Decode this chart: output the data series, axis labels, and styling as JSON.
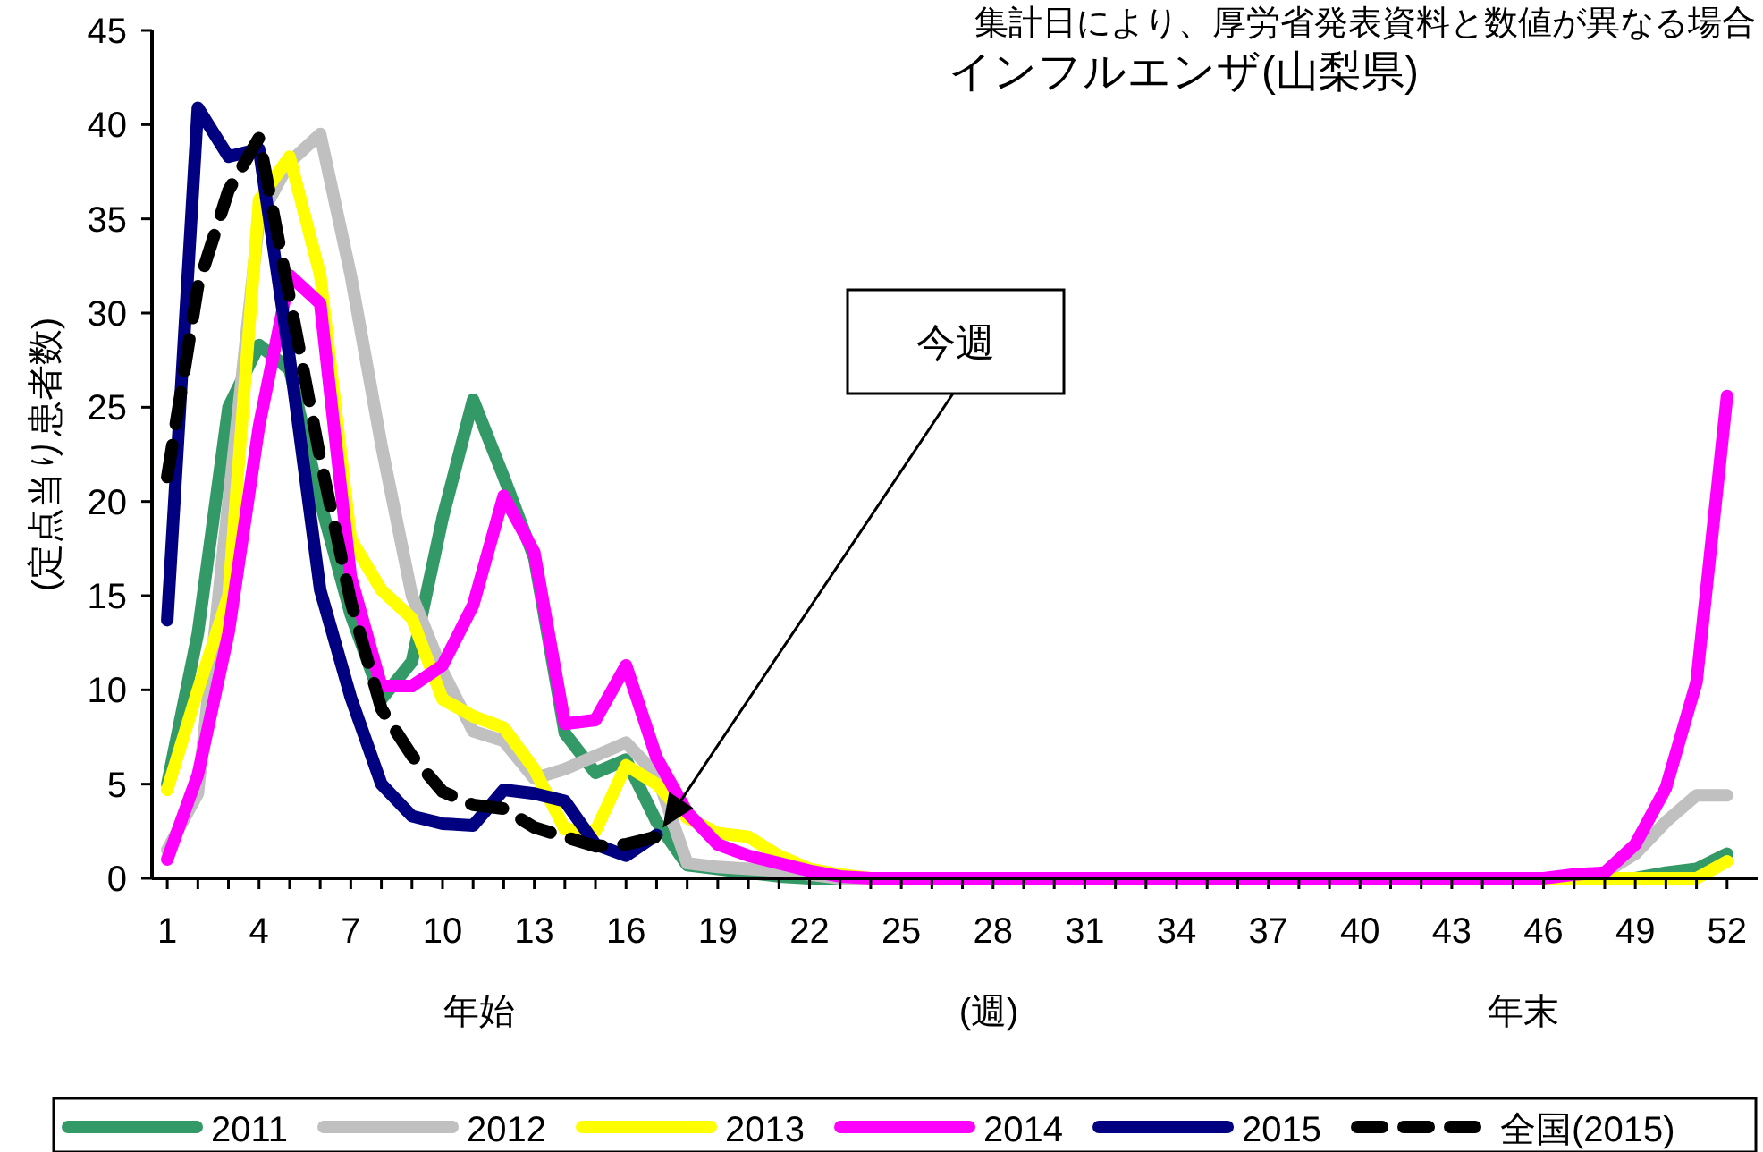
{
  "chart_data": {
    "type": "line",
    "title": "インフルエンザ(山梨県)",
    "xlabel": "(週)",
    "ylabel": "(定点当り患者数)",
    "x": [
      1,
      2,
      3,
      4,
      5,
      6,
      7,
      8,
      9,
      10,
      11,
      12,
      13,
      14,
      15,
      16,
      17,
      18,
      19,
      20,
      21,
      22,
      23,
      24,
      25,
      26,
      27,
      28,
      29,
      30,
      31,
      32,
      33,
      34,
      35,
      36,
      37,
      38,
      39,
      40,
      41,
      42,
      43,
      44,
      45,
      46,
      47,
      48,
      49,
      50,
      51,
      52
    ],
    "xlim": [
      0.5,
      53
    ],
    "xticks": [
      1,
      {
        "value": 2,
        "label": null
      },
      {
        "value": 3,
        "label": null
      },
      4,
      {
        "value": 5,
        "label": null
      },
      {
        "value": 6,
        "label": null
      },
      7,
      {
        "value": 8,
        "label": null
      },
      {
        "value": 9,
        "label": null
      },
      10,
      {
        "value": 11,
        "label": null
      },
      {
        "value": 12,
        "label": null
      },
      13,
      {
        "value": 14,
        "label": null
      },
      {
        "value": 15,
        "label": null
      },
      16,
      {
        "value": 17,
        "label": null
      },
      {
        "value": 18,
        "label": null
      },
      19,
      {
        "value": 20,
        "label": null
      },
      {
        "value": 21,
        "label": null
      },
      22,
      {
        "value": 23,
        "label": null
      },
      {
        "value": 24,
        "label": null
      },
      25,
      {
        "value": 26,
        "label": null
      },
      {
        "value": 27,
        "label": null
      },
      28,
      {
        "value": 29,
        "label": null
      },
      {
        "value": 30,
        "label": null
      },
      31,
      {
        "value": 32,
        "label": null
      },
      {
        "value": 33,
        "label": null
      },
      34,
      {
        "value": 35,
        "label": null
      },
      {
        "value": 36,
        "label": null
      },
      37,
      {
        "value": 38,
        "label": null
      },
      {
        "value": 39,
        "label": null
      },
      40,
      {
        "value": 41,
        "label": null
      },
      {
        "value": 42,
        "label": null
      },
      43,
      {
        "value": 44,
        "label": null
      },
      {
        "value": 45,
        "label": null
      },
      46,
      {
        "value": 47,
        "label": null
      },
      {
        "value": 48,
        "label": null
      },
      49,
      {
        "value": 50,
        "label": null
      },
      {
        "value": 51,
        "label": null
      },
      52
    ],
    "ylim": [
      0,
      45
    ],
    "yticks": [
      0,
      5,
      10,
      15,
      20,
      25,
      30,
      35,
      40,
      45
    ],
    "grid": false,
    "legend": "bottom",
    "marker": "none",
    "series": [
      {
        "name": "2011",
        "color": "#339966",
        "values": [
          5,
          13,
          25,
          28.3,
          27,
          20,
          14,
          9.5,
          11.5,
          19.1,
          25.4,
          21.3,
          17,
          7.7,
          5.6,
          6.3,
          3,
          0.7,
          0.5,
          0.3,
          0.1,
          0,
          0,
          0,
          0,
          0,
          0,
          0,
          0,
          0,
          0,
          0,
          0,
          0,
          0,
          0,
          0,
          0,
          0,
          0,
          0,
          0,
          0,
          0,
          0,
          0,
          0,
          0,
          0,
          0.3,
          0.5,
          1.3
        ]
      },
      {
        "name": "2012",
        "color": "#c0c0c0",
        "values": [
          1.5,
          4.5,
          20,
          35,
          38,
          39.5,
          32,
          23,
          15,
          11,
          7.8,
          7.3,
          5.3,
          5.8,
          6.5,
          7.2,
          5.5,
          0.8,
          0.6,
          0.5,
          0.4,
          0.2,
          0,
          0,
          0,
          0,
          0,
          0,
          0,
          0,
          0,
          0,
          0,
          0,
          0,
          0,
          0,
          0,
          0,
          0,
          0,
          0,
          0,
          0,
          0,
          0,
          0,
          0.3,
          1.3,
          3,
          4.4,
          4.4
        ]
      },
      {
        "name": "2013",
        "color": "#ffff00",
        "values": [
          4.7,
          10,
          15,
          36,
          38.3,
          32,
          18,
          15.3,
          13.8,
          9.5,
          8.6,
          8,
          5.8,
          2.6,
          2.5,
          6,
          5,
          3.2,
          2.4,
          2.2,
          1.2,
          0.5,
          0.2,
          0,
          0,
          0,
          0,
          0,
          0,
          0,
          0,
          0,
          0,
          0,
          0,
          0,
          0,
          0,
          0,
          0,
          0,
          0,
          0,
          0,
          0,
          0,
          0,
          0,
          0,
          0,
          0,
          0.9
        ]
      },
      {
        "name": "2014",
        "color": "#ff00ff",
        "values": [
          1,
          5.5,
          13,
          24,
          32,
          30.5,
          16,
          10.2,
          10.2,
          11.3,
          14.5,
          20.3,
          17.3,
          8.2,
          8.4,
          11.3,
          6.4,
          3.5,
          1.8,
          1.2,
          0.8,
          0.4,
          0.1,
          0,
          0,
          0,
          0,
          0,
          0,
          0,
          0,
          0,
          0,
          0,
          0,
          0,
          0,
          0,
          0,
          0,
          0,
          0,
          0,
          0,
          0,
          0,
          0.2,
          0.3,
          1.8,
          4.8,
          10.4,
          25.6
        ]
      },
      {
        "name": "2015",
        "color": "#000080",
        "values": [
          13.7,
          40.9,
          38.3,
          38.7,
          27.6,
          15.3,
          9.6,
          5,
          3.3,
          2.9,
          2.8,
          4.7,
          4.5,
          4.1,
          1.8,
          1.2,
          2.3,
          null,
          null,
          null,
          null,
          null,
          null,
          null,
          null,
          null,
          null,
          null,
          null,
          null,
          null,
          null,
          null,
          null,
          null,
          null,
          null,
          null,
          null,
          null,
          null,
          null,
          null,
          null,
          null,
          null,
          null,
          null,
          null,
          null,
          null,
          null
        ]
      },
      {
        "name": "全国(2015)",
        "color": "#000000",
        "line_style": "dashed",
        "values": [
          21.3,
          31.4,
          36.5,
          39.3,
          30.8,
          22.3,
          14.7,
          9,
          6.5,
          4.6,
          3.9,
          3.7,
          2.7,
          2.2,
          1.7,
          1.8,
          2.2,
          null,
          null,
          null,
          null,
          null,
          null,
          null,
          null,
          null,
          null,
          null,
          null,
          null,
          null,
          null,
          null,
          null,
          null,
          null,
          null,
          null,
          null,
          null,
          null,
          null,
          null,
          null,
          null,
          null,
          null,
          null,
          null,
          null,
          null,
          null
        ]
      }
    ],
    "annotations": [
      "集計日により、厚労省発表資料と数値が異なる場合",
      "年始",
      "年末",
      "今週"
    ]
  }
}
